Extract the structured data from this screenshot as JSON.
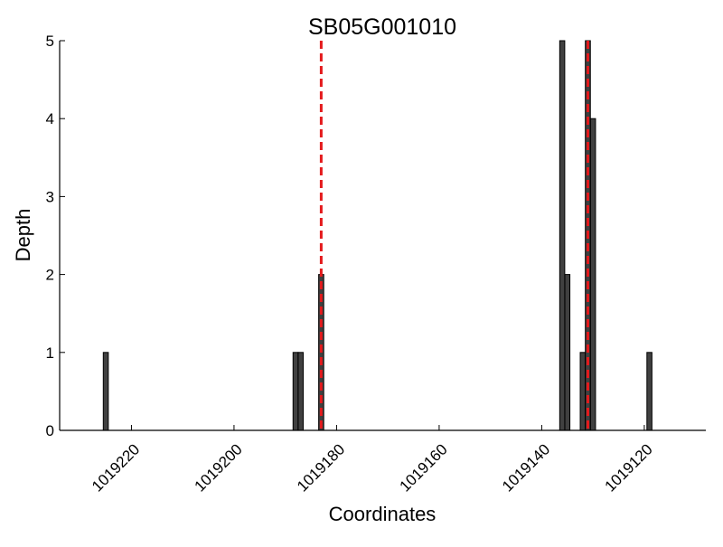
{
  "chart_data": {
    "type": "bar",
    "title": "SB05G001010",
    "xlabel": "Coordinates",
    "ylabel": "Depth",
    "x_axis": {
      "inverted": true,
      "xlim": [
        1019234,
        1019108
      ],
      "ticks": [
        1019220,
        1019200,
        1019180,
        1019160,
        1019140,
        1019120
      ],
      "tick_labels": [
        "1019220",
        "1019200",
        "1019180",
        "1019160",
        "1019140",
        "1019120"
      ]
    },
    "y_axis": {
      "ylim": [
        0,
        5
      ],
      "ticks": [
        0,
        1,
        2,
        3,
        4,
        5
      ],
      "tick_labels": [
        "0",
        "1",
        "2",
        "3",
        "4",
        "5"
      ]
    },
    "grid": false,
    "bar_color": "#404040",
    "bar_edge_color": "#000000",
    "points": [
      {
        "x": 1019225,
        "depth": 1
      },
      {
        "x": 1019188,
        "depth": 1
      },
      {
        "x": 1019187,
        "depth": 1
      },
      {
        "x": 1019183,
        "depth": 2
      },
      {
        "x": 1019136,
        "depth": 5
      },
      {
        "x": 1019135,
        "depth": 2
      },
      {
        "x": 1019132,
        "depth": 1
      },
      {
        "x": 1019131,
        "depth": 5
      },
      {
        "x": 1019130,
        "depth": 4
      },
      {
        "x": 1019119,
        "depth": 1
      }
    ],
    "markers": {
      "color": "#e41a1c",
      "style": "dashed",
      "positions": [
        1019183,
        1019131
      ]
    }
  }
}
